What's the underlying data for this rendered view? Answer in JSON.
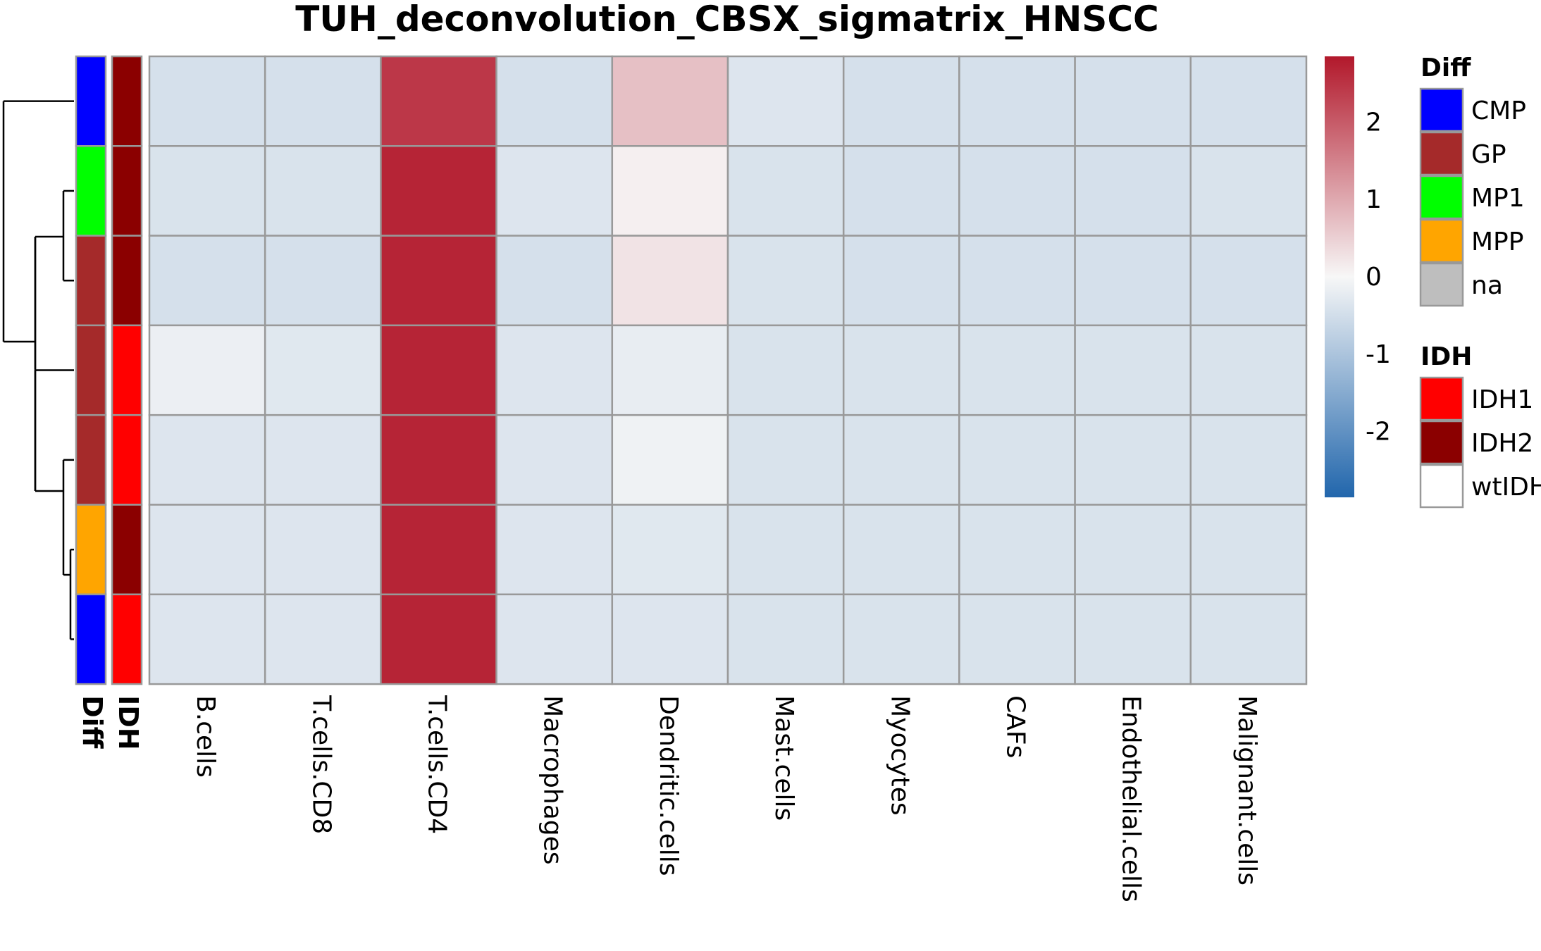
{
  "chart_data": {
    "type": "heatmap",
    "title": "TUH_deconvolution_CBSX_sigmatrix_HNSCC",
    "columns": [
      "B.cells",
      "T.cells.CD8",
      "T.cells.CD4",
      "Macrophages",
      "Dendritic.cells",
      "Mast.cells",
      "Myocytes",
      "CAFs",
      "Endothelial.cells",
      "Malignant.cells"
    ],
    "values": [
      [
        -0.45,
        -0.45,
        2.45,
        -0.45,
        0.7,
        -0.35,
        -0.45,
        -0.45,
        -0.45,
        -0.45
      ],
      [
        -0.4,
        -0.4,
        2.7,
        -0.35,
        0.1,
        -0.4,
        -0.45,
        -0.45,
        -0.45,
        -0.4
      ],
      [
        -0.45,
        -0.45,
        2.7,
        -0.45,
        0.25,
        -0.4,
        -0.45,
        -0.45,
        -0.45,
        -0.45
      ],
      [
        -0.15,
        -0.3,
        2.7,
        -0.35,
        -0.2,
        -0.4,
        -0.4,
        -0.4,
        -0.4,
        -0.4
      ],
      [
        -0.35,
        -0.35,
        2.7,
        -0.35,
        -0.1,
        -0.4,
        -0.4,
        -0.4,
        -0.4,
        -0.4
      ],
      [
        -0.35,
        -0.35,
        2.7,
        -0.35,
        -0.3,
        -0.4,
        -0.4,
        -0.4,
        -0.4,
        -0.4
      ],
      [
        -0.35,
        -0.35,
        2.7,
        -0.35,
        -0.35,
        -0.4,
        -0.4,
        -0.4,
        -0.4,
        -0.4
      ]
    ],
    "row_annotations": {
      "Diff": [
        "CMP",
        "MP1",
        "GP",
        "GP",
        "GP",
        "MPP",
        "CMP"
      ],
      "IDH": [
        "IDH2",
        "IDH2",
        "IDH2",
        "IDH1",
        "IDH1",
        "IDH2",
        "IDH1"
      ]
    },
    "annotation_labels": [
      "Diff",
      "IDH"
    ],
    "color_scale": {
      "min": -2.85,
      "max": 2.85,
      "low": "#2166AC",
      "mid": "#F7F7F7",
      "high": "#B2182B",
      "ticks": [
        2,
        1,
        0,
        -1,
        -2
      ],
      "tick_labels": [
        "2",
        "1",
        "0",
        "-1",
        "-2"
      ]
    },
    "legends": [
      {
        "title": "Diff",
        "items": [
          {
            "label": "CMP",
            "color": "#0000FF"
          },
          {
            "label": "GP",
            "color": "#A52A2A"
          },
          {
            "label": "MP1",
            "color": "#00FF00"
          },
          {
            "label": "MPP",
            "color": "#FFA500"
          },
          {
            "label": "na",
            "color": "#BEBEBE"
          }
        ]
      },
      {
        "title": "IDH",
        "items": [
          {
            "label": "IDH1",
            "color": "#FF0000"
          },
          {
            "label": "IDH2",
            "color": "#8B0000"
          },
          {
            "label": "wtIDH",
            "color": "#FFFFFF"
          }
        ]
      }
    ],
    "row_dendrogram": true
  }
}
